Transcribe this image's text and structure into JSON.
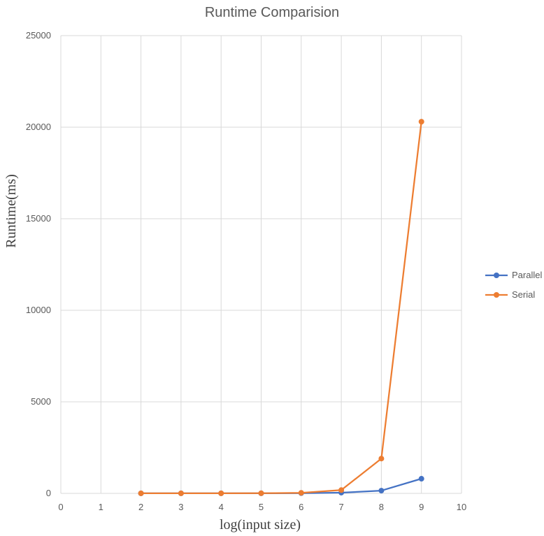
{
  "chart_data": {
    "type": "line",
    "title": "Runtime Comparision",
    "xlabel": "log(input size)",
    "ylabel": "Runtime(ms)",
    "xlim": [
      0,
      10
    ],
    "ylim": [
      0,
      25000
    ],
    "x_ticks": [
      "0",
      "1",
      "2",
      "3",
      "4",
      "5",
      "6",
      "7",
      "8",
      "9",
      "10"
    ],
    "y_ticks": [
      "0",
      "5000",
      "10000",
      "15000",
      "20000",
      "25000"
    ],
    "grid": true,
    "legend_position": "right",
    "x": [
      2,
      3,
      4,
      5,
      6,
      7,
      8,
      9
    ],
    "series": [
      {
        "name": "Parallel",
        "color": "#4472c4",
        "values": [
          2,
          3,
          4,
          5,
          12,
          40,
          150,
          800
        ]
      },
      {
        "name": "Serial",
        "color": "#ed7d31",
        "values": [
          3,
          4,
          5,
          8,
          30,
          180,
          1900,
          20300
        ]
      }
    ]
  }
}
